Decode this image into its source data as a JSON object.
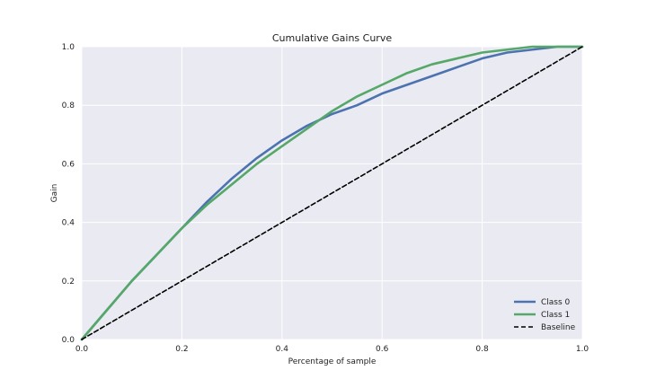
{
  "chart_data": {
    "type": "line",
    "title": "Cumulative Gains Curve",
    "xlabel": "Percentage of sample",
    "ylabel": "Gain",
    "xlim": [
      0,
      1
    ],
    "ylim": [
      0,
      1
    ],
    "xticks": [
      0.0,
      0.2,
      0.4,
      0.6,
      0.8,
      1.0
    ],
    "yticks": [
      0.0,
      0.2,
      0.4,
      0.6,
      0.8,
      1.0
    ],
    "xtick_labels": [
      "0.0",
      "0.2",
      "0.4",
      "0.6",
      "0.8",
      "1.0"
    ],
    "ytick_labels": [
      "0.0",
      "0.2",
      "0.4",
      "0.6",
      "0.8",
      "1.0"
    ],
    "grid": true,
    "legend_position": "bottom-right",
    "background_color": "#eaeaf2",
    "series": [
      {
        "name": "Class 0",
        "color": "#4c72b0",
        "style": "solid",
        "x": [
          0.0,
          0.05,
          0.1,
          0.15,
          0.2,
          0.25,
          0.3,
          0.35,
          0.4,
          0.45,
          0.5,
          0.55,
          0.6,
          0.65,
          0.7,
          0.75,
          0.8,
          0.85,
          0.9,
          0.95,
          1.0
        ],
        "y": [
          0.0,
          0.1,
          0.2,
          0.29,
          0.38,
          0.47,
          0.55,
          0.62,
          0.68,
          0.73,
          0.77,
          0.8,
          0.84,
          0.87,
          0.9,
          0.93,
          0.96,
          0.98,
          0.99,
          1.0,
          1.0
        ]
      },
      {
        "name": "Class 1",
        "color": "#55a868",
        "style": "solid",
        "x": [
          0.0,
          0.05,
          0.1,
          0.15,
          0.2,
          0.25,
          0.3,
          0.35,
          0.4,
          0.45,
          0.5,
          0.55,
          0.6,
          0.65,
          0.7,
          0.75,
          0.8,
          0.85,
          0.9,
          0.95,
          1.0
        ],
        "y": [
          0.0,
          0.1,
          0.2,
          0.29,
          0.38,
          0.46,
          0.53,
          0.6,
          0.66,
          0.72,
          0.78,
          0.83,
          0.87,
          0.91,
          0.94,
          0.96,
          0.98,
          0.99,
          1.0,
          1.0,
          1.0
        ]
      },
      {
        "name": "Baseline",
        "color": "#000000",
        "style": "dashed",
        "x": [
          0.0,
          1.0
        ],
        "y": [
          0.0,
          1.0
        ]
      }
    ]
  }
}
